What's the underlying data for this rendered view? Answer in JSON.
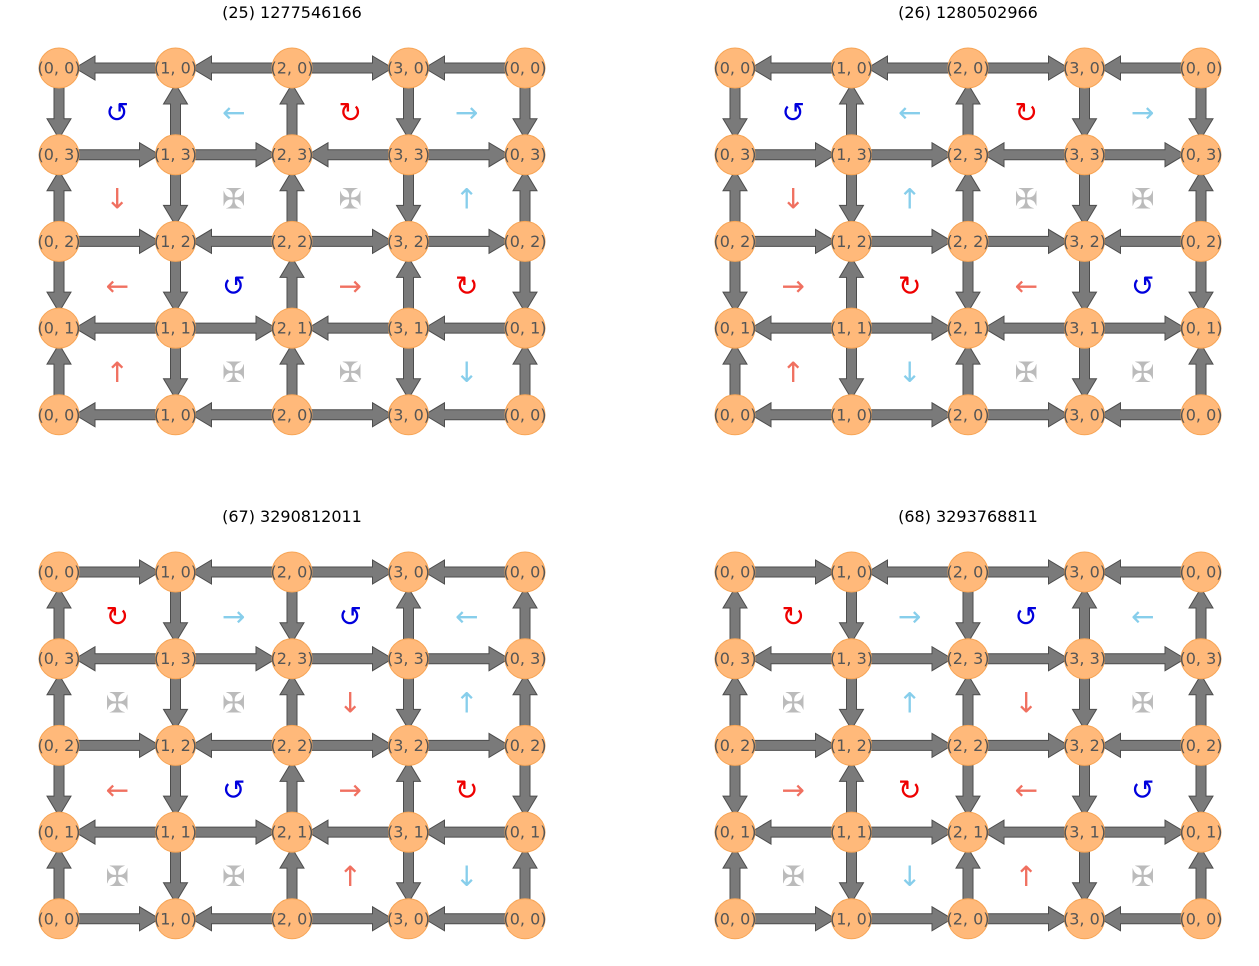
{
  "colors": {
    "node_fill": "#ffb97a",
    "node_stroke": "#f7a556",
    "edge_fill": "#7a7a7a",
    "edge_stroke": "#4d4d4d",
    "label": "#555555",
    "red": "#ee0000",
    "blue": "#0000dd",
    "salmon": "#f07060",
    "skyblue": "#87ceeb",
    "gray": "#bbbbbb"
  },
  "symbol_legend": {
    "ccw": "↺",
    "cw": "↻",
    "left": "←",
    "right": "→",
    "up": "↑",
    "down": "↓",
    "cross": "✠"
  },
  "row_labels": [
    [
      "(0, 0)",
      "(1, 0)",
      "(2, 0)",
      "(3, 0)",
      "(0, 0)"
    ],
    [
      "(0, 3)",
      "(1, 3)",
      "(2, 3)",
      "(3, 3)",
      "(0, 3)"
    ],
    [
      "(0, 2)",
      "(1, 2)",
      "(2, 2)",
      "(3, 2)",
      "(0, 2)"
    ],
    [
      "(0, 1)",
      "(1, 1)",
      "(2, 1)",
      "(3, 1)",
      "(0, 1)"
    ],
    [
      "(0, 0)",
      "(1, 0)",
      "(2, 0)",
      "(3, 0)",
      "(0, 0)"
    ]
  ],
  "panels": [
    {
      "title": "(25) 1277546166",
      "h_edges": [
        [
          "L",
          "L",
          "R",
          "L"
        ],
        [
          "R",
          "R",
          "L",
          "R"
        ],
        [
          "R",
          "L",
          "R",
          "R"
        ],
        [
          "L",
          "R",
          "L",
          "L"
        ],
        [
          "L",
          "L",
          "R",
          "L"
        ]
      ],
      "v_edges": [
        [
          "D",
          "U",
          "U",
          "D",
          "D"
        ],
        [
          "U",
          "D",
          "U",
          "D",
          "U"
        ],
        [
          "D",
          "D",
          "U",
          "U",
          "D"
        ],
        [
          "U",
          "D",
          "U",
          "D",
          "U"
        ]
      ],
      "cells": [
        [
          {
            "s": "↺",
            "c": "blue"
          },
          {
            "s": "←",
            "c": "skyblue"
          },
          {
            "s": "↻",
            "c": "red"
          },
          {
            "s": "→",
            "c": "skyblue"
          }
        ],
        [
          {
            "s": "↓",
            "c": "salmon"
          },
          {
            "s": "✠",
            "c": "gray"
          },
          {
            "s": "✠",
            "c": "gray"
          },
          {
            "s": "↑",
            "c": "skyblue"
          }
        ],
        [
          {
            "s": "←",
            "c": "salmon"
          },
          {
            "s": "↺",
            "c": "blue"
          },
          {
            "s": "→",
            "c": "salmon"
          },
          {
            "s": "↻",
            "c": "red"
          }
        ],
        [
          {
            "s": "↑",
            "c": "salmon"
          },
          {
            "s": "✠",
            "c": "gray"
          },
          {
            "s": "✠",
            "c": "gray"
          },
          {
            "s": "↓",
            "c": "skyblue"
          }
        ]
      ]
    },
    {
      "title": "(26) 1280502966",
      "h_edges": [
        [
          "L",
          "L",
          "R",
          "L"
        ],
        [
          "R",
          "R",
          "L",
          "R"
        ],
        [
          "R",
          "R",
          "R",
          "L"
        ],
        [
          "L",
          "R",
          "L",
          "R"
        ],
        [
          "L",
          "R",
          "R",
          "L"
        ]
      ],
      "v_edges": [
        [
          "D",
          "U",
          "U",
          "D",
          "D"
        ],
        [
          "U",
          "D",
          "U",
          "D",
          "U"
        ],
        [
          "D",
          "U",
          "D",
          "D",
          "D"
        ],
        [
          "U",
          "D",
          "U",
          "D",
          "U"
        ]
      ],
      "cells": [
        [
          {
            "s": "↺",
            "c": "blue"
          },
          {
            "s": "←",
            "c": "skyblue"
          },
          {
            "s": "↻",
            "c": "red"
          },
          {
            "s": "→",
            "c": "skyblue"
          }
        ],
        [
          {
            "s": "↓",
            "c": "salmon"
          },
          {
            "s": "↑",
            "c": "skyblue"
          },
          {
            "s": "✠",
            "c": "gray"
          },
          {
            "s": "✠",
            "c": "gray"
          }
        ],
        [
          {
            "s": "→",
            "c": "salmon"
          },
          {
            "s": "↻",
            "c": "red"
          },
          {
            "s": "←",
            "c": "salmon"
          },
          {
            "s": "↺",
            "c": "blue"
          }
        ],
        [
          {
            "s": "↑",
            "c": "salmon"
          },
          {
            "s": "↓",
            "c": "skyblue"
          },
          {
            "s": "✠",
            "c": "gray"
          },
          {
            "s": "✠",
            "c": "gray"
          }
        ]
      ]
    },
    {
      "title": "(67) 3290812011",
      "h_edges": [
        [
          "R",
          "L",
          "R",
          "L"
        ],
        [
          "L",
          "R",
          "R",
          "R"
        ],
        [
          "R",
          "L",
          "R",
          "R"
        ],
        [
          "L",
          "R",
          "L",
          "L"
        ],
        [
          "R",
          "L",
          "R",
          "L"
        ]
      ],
      "v_edges": [
        [
          "U",
          "D",
          "D",
          "U",
          "U"
        ],
        [
          "U",
          "D",
          "U",
          "D",
          "U"
        ],
        [
          "D",
          "D",
          "U",
          "U",
          "D"
        ],
        [
          "U",
          "D",
          "U",
          "D",
          "U"
        ]
      ],
      "cells": [
        [
          {
            "s": "↻",
            "c": "red"
          },
          {
            "s": "→",
            "c": "skyblue"
          },
          {
            "s": "↺",
            "c": "blue"
          },
          {
            "s": "←",
            "c": "skyblue"
          }
        ],
        [
          {
            "s": "✠",
            "c": "gray"
          },
          {
            "s": "✠",
            "c": "gray"
          },
          {
            "s": "↓",
            "c": "salmon"
          },
          {
            "s": "↑",
            "c": "skyblue"
          }
        ],
        [
          {
            "s": "←",
            "c": "salmon"
          },
          {
            "s": "↺",
            "c": "blue"
          },
          {
            "s": "→",
            "c": "salmon"
          },
          {
            "s": "↻",
            "c": "red"
          }
        ],
        [
          {
            "s": "✠",
            "c": "gray"
          },
          {
            "s": "✠",
            "c": "gray"
          },
          {
            "s": "↑",
            "c": "salmon"
          },
          {
            "s": "↓",
            "c": "skyblue"
          }
        ]
      ]
    },
    {
      "title": "(68) 3293768811",
      "h_edges": [
        [
          "R",
          "L",
          "R",
          "L"
        ],
        [
          "L",
          "R",
          "R",
          "R"
        ],
        [
          "R",
          "R",
          "R",
          "L"
        ],
        [
          "L",
          "R",
          "L",
          "R"
        ],
        [
          "R",
          "R",
          "R",
          "L"
        ]
      ],
      "v_edges": [
        [
          "U",
          "D",
          "D",
          "U",
          "U"
        ],
        [
          "U",
          "D",
          "U",
          "D",
          "U"
        ],
        [
          "D",
          "U",
          "D",
          "D",
          "D"
        ],
        [
          "U",
          "D",
          "U",
          "D",
          "U"
        ]
      ],
      "cells": [
        [
          {
            "s": "↻",
            "c": "red"
          },
          {
            "s": "→",
            "c": "skyblue"
          },
          {
            "s": "↺",
            "c": "blue"
          },
          {
            "s": "←",
            "c": "skyblue"
          }
        ],
        [
          {
            "s": "✠",
            "c": "gray"
          },
          {
            "s": "↑",
            "c": "skyblue"
          },
          {
            "s": "↓",
            "c": "salmon"
          },
          {
            "s": "✠",
            "c": "gray"
          }
        ],
        [
          {
            "s": "→",
            "c": "salmon"
          },
          {
            "s": "↻",
            "c": "red"
          },
          {
            "s": "←",
            "c": "salmon"
          },
          {
            "s": "↺",
            "c": "blue"
          }
        ],
        [
          {
            "s": "✠",
            "c": "gray"
          },
          {
            "s": "↓",
            "c": "skyblue"
          },
          {
            "s": "↑",
            "c": "salmon"
          },
          {
            "s": "✠",
            "c": "gray"
          }
        ]
      ]
    }
  ]
}
